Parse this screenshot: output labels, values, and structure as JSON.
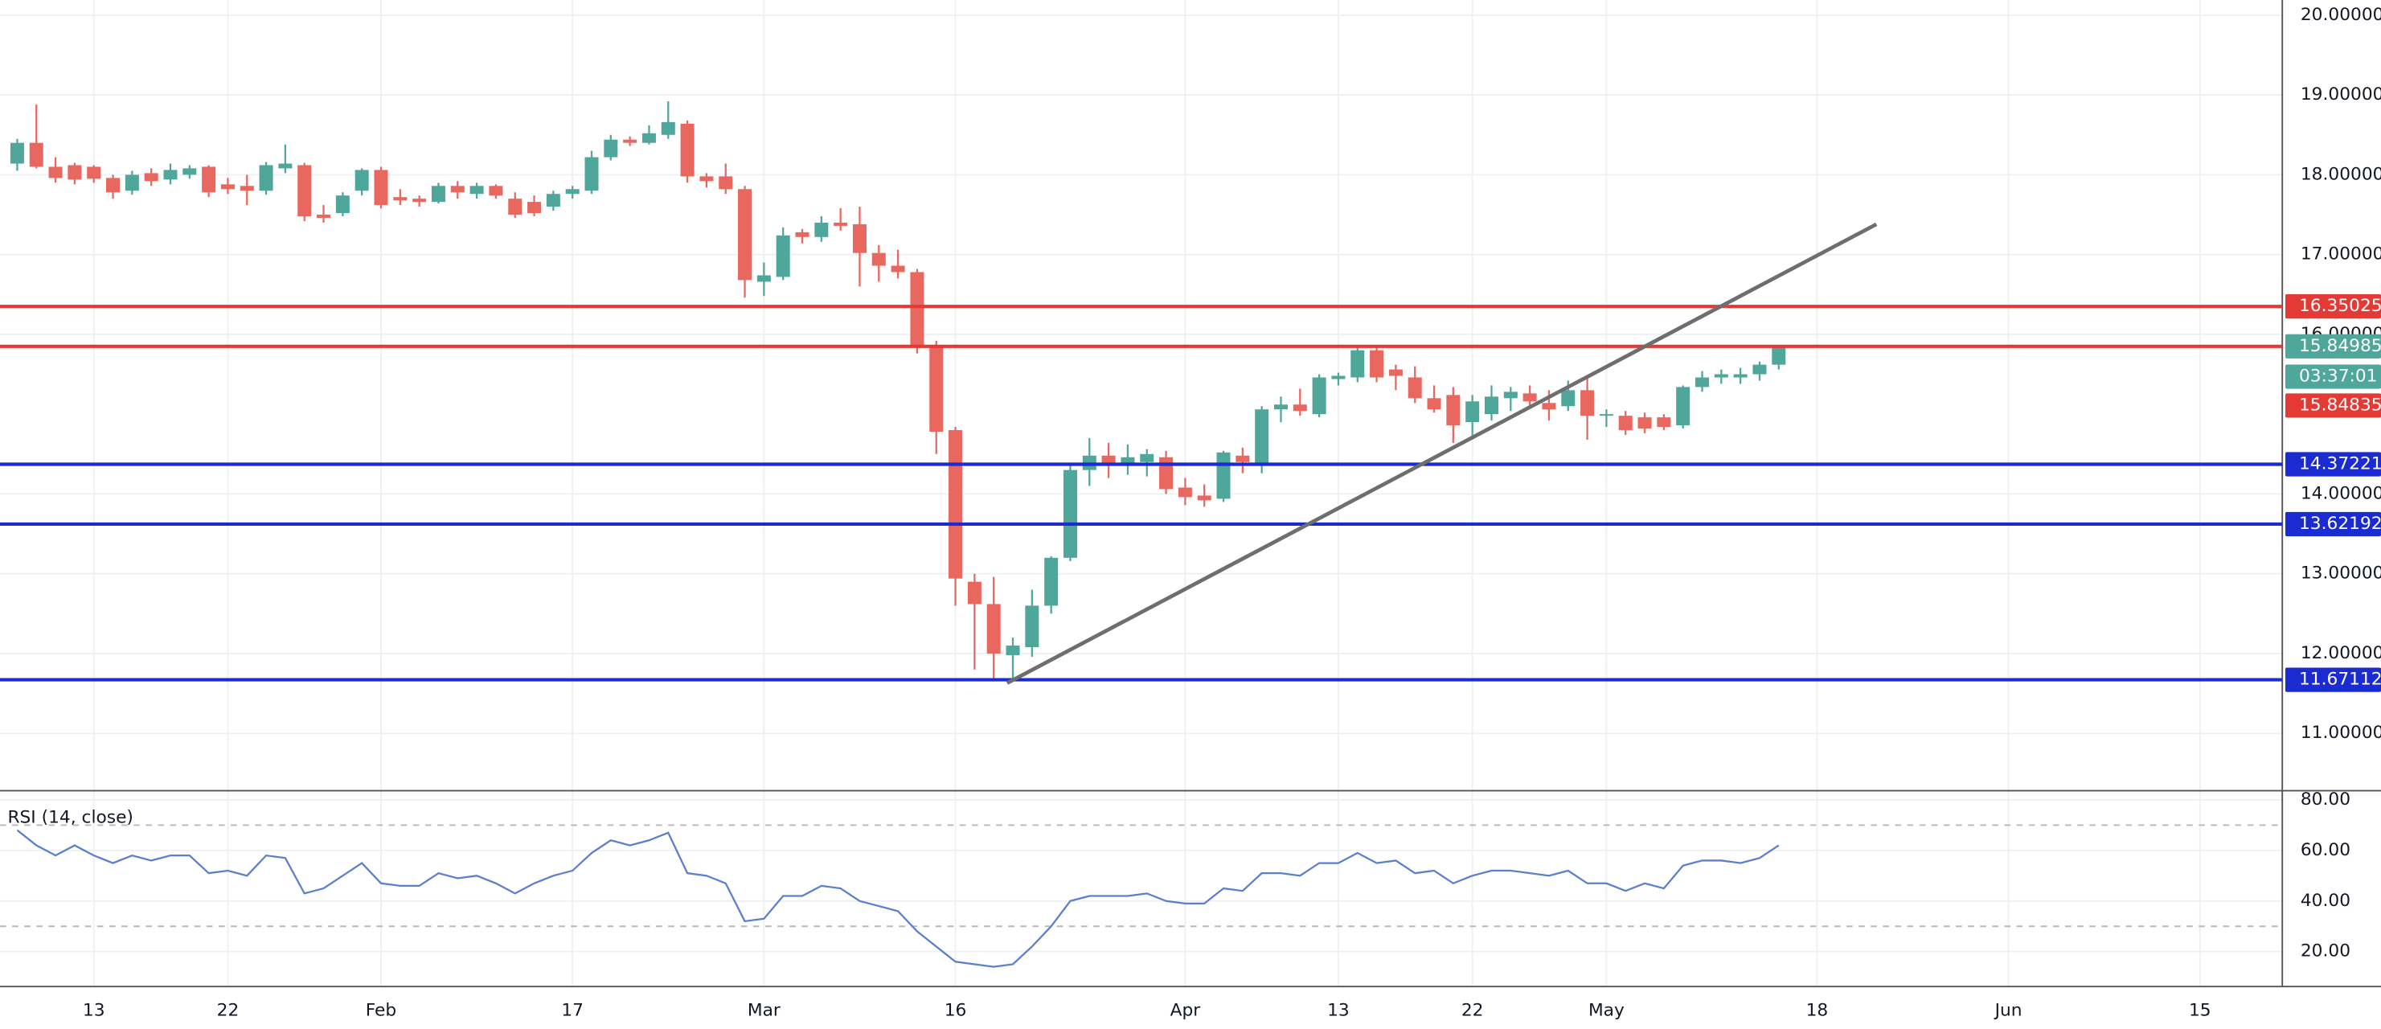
{
  "chart_data": {
    "type": "candlestick",
    "up_color": "#4fa69a",
    "down_color": "#e8675e",
    "xlim": [
      -0.9,
      118.3
    ],
    "xticks": [
      {
        "value": 4,
        "label": "13"
      },
      {
        "value": 11,
        "label": "22"
      },
      {
        "value": 19,
        "label": "Feb"
      },
      {
        "value": 29,
        "label": "17"
      },
      {
        "value": 39,
        "label": "Mar"
      },
      {
        "value": 49,
        "label": "16"
      },
      {
        "value": 61,
        "label": "Apr"
      },
      {
        "value": 69,
        "label": "13"
      },
      {
        "value": 76,
        "label": "22"
      },
      {
        "value": 83,
        "label": "May"
      },
      {
        "value": 94,
        "label": "18"
      },
      {
        "value": 104,
        "label": "Jun"
      },
      {
        "value": 114,
        "label": "15"
      }
    ],
    "ylim": [
      10.3,
      20.19
    ],
    "yticks": [
      {
        "value": 11,
        "label": "11.00000"
      },
      {
        "value": 12,
        "label": "12.00000"
      },
      {
        "value": 13,
        "label": "13.00000"
      },
      {
        "value": 14,
        "label": "14.00000"
      },
      {
        "value": 16,
        "label": "16.00000"
      },
      {
        "value": 17,
        "label": "17.00000"
      },
      {
        "value": 18,
        "label": "18.00000"
      },
      {
        "value": 19,
        "label": "19.00000"
      },
      {
        "value": 20,
        "label": "20.00000"
      }
    ],
    "grid": true,
    "open": [
      18.14,
      18.4,
      18.1,
      18.12,
      18.1,
      17.96,
      17.8,
      18.02,
      17.94,
      18.0,
      18.1,
      17.88,
      17.86,
      17.8,
      18.08,
      18.12,
      17.5,
      17.52,
      17.8,
      18.06,
      17.72,
      17.7,
      17.66,
      17.86,
      17.76,
      17.86,
      17.7,
      17.66,
      17.6,
      17.76,
      17.8,
      18.22,
      18.44,
      18.4,
      18.5,
      18.64,
      17.98,
      17.98,
      17.82,
      16.66,
      16.72,
      17.28,
      17.22,
      17.4,
      17.38,
      17.02,
      16.86,
      16.78,
      15.86,
      14.8,
      12.9,
      12.62,
      11.98,
      12.08,
      12.6,
      13.2,
      14.3,
      14.48,
      14.36,
      14.4,
      14.46,
      14.08,
      13.98,
      13.94,
      14.48,
      14.38,
      15.06,
      15.12,
      15.0,
      15.44,
      15.46,
      15.8,
      15.56,
      15.46,
      15.2,
      15.24,
      14.9,
      15.0,
      15.2,
      15.26,
      15.14,
      15.1,
      15.3,
      14.98,
      14.98,
      14.96,
      14.96,
      14.86,
      15.34,
      15.46,
      15.46,
      15.5,
      15.62
    ],
    "high": [
      18.45,
      18.88,
      18.22,
      18.15,
      18.12,
      18.0,
      18.05,
      18.08,
      18.14,
      18.12,
      18.12,
      17.96,
      18.0,
      18.16,
      18.38,
      18.15,
      17.62,
      17.78,
      18.08,
      18.1,
      17.82,
      17.74,
      17.9,
      17.92,
      17.9,
      17.88,
      17.78,
      17.74,
      17.8,
      17.86,
      18.3,
      18.5,
      18.48,
      18.62,
      18.92,
      18.68,
      18.02,
      18.14,
      17.86,
      16.9,
      17.34,
      17.32,
      17.48,
      17.58,
      17.6,
      17.12,
      17.06,
      16.82,
      15.92,
      14.84,
      13.0,
      12.96,
      12.2,
      12.8,
      13.22,
      14.36,
      14.7,
      14.64,
      14.62,
      14.56,
      14.54,
      14.2,
      14.12,
      14.54,
      14.58,
      15.1,
      15.22,
      15.32,
      15.5,
      15.52,
      15.86,
      15.86,
      15.62,
      15.6,
      15.36,
      15.34,
      15.24,
      15.36,
      15.34,
      15.36,
      15.3,
      15.42,
      15.46,
      15.06,
      15.04,
      15.02,
      15.0,
      15.36,
      15.54,
      15.56,
      15.58,
      15.66,
      15.86
    ],
    "low": [
      18.05,
      18.08,
      17.9,
      17.88,
      17.9,
      17.7,
      17.75,
      17.86,
      17.88,
      17.95,
      17.72,
      17.76,
      17.62,
      17.75,
      18.02,
      17.42,
      17.4,
      17.48,
      17.74,
      17.58,
      17.62,
      17.6,
      17.64,
      17.7,
      17.7,
      17.7,
      17.46,
      17.48,
      17.55,
      17.7,
      17.76,
      18.18,
      18.36,
      18.38,
      18.45,
      17.9,
      17.84,
      17.76,
      16.46,
      16.48,
      16.68,
      17.14,
      17.16,
      17.3,
      16.6,
      16.66,
      16.7,
      15.76,
      14.5,
      12.6,
      11.8,
      11.68,
      11.66,
      11.96,
      12.5,
      13.16,
      14.1,
      14.2,
      14.24,
      14.22,
      14.0,
      13.86,
      13.84,
      13.9,
      14.26,
      14.26,
      14.9,
      14.98,
      14.96,
      15.36,
      15.4,
      15.4,
      15.3,
      15.14,
      15.02,
      14.64,
      14.72,
      14.92,
      15.04,
      15.08,
      14.92,
      15.04,
      14.68,
      14.84,
      14.74,
      14.76,
      14.8,
      14.82,
      15.28,
      15.38,
      15.38,
      15.42,
      15.56
    ],
    "close": [
      18.4,
      18.1,
      17.96,
      17.94,
      17.95,
      17.78,
      18.0,
      17.92,
      18.06,
      18.08,
      17.78,
      17.82,
      17.8,
      18.12,
      18.14,
      17.48,
      17.46,
      17.74,
      18.06,
      17.62,
      17.68,
      17.66,
      17.86,
      17.78,
      17.86,
      17.74,
      17.5,
      17.52,
      17.76,
      17.82,
      18.22,
      18.44,
      18.4,
      18.52,
      18.66,
      17.98,
      17.92,
      17.82,
      16.68,
      16.74,
      17.24,
      17.22,
      17.4,
      17.36,
      17.02,
      16.86,
      16.78,
      15.86,
      14.78,
      12.94,
      12.62,
      12.0,
      12.1,
      12.6,
      13.2,
      14.3,
      14.48,
      14.36,
      14.46,
      14.5,
      14.06,
      13.96,
      13.92,
      14.52,
      14.4,
      15.06,
      15.12,
      15.04,
      15.46,
      15.48,
      15.8,
      15.46,
      15.48,
      15.2,
      15.06,
      14.86,
      15.16,
      15.22,
      15.28,
      15.16,
      15.06,
      15.3,
      14.98,
      15.0,
      14.8,
      14.82,
      14.84,
      15.34,
      15.46,
      15.5,
      15.5,
      15.62,
      15.85
    ],
    "levels": [
      {
        "value": 16.35025,
        "color": "#e53935",
        "tag_color": "#e53935"
      },
      {
        "value": 15.84985,
        "color": "#e53935",
        "tag_color": "#4fa69a"
      },
      {
        "value": 14.37221,
        "color": "#1a2bd1",
        "tag_color": "#1a2bd1"
      },
      {
        "value": 13.62192,
        "color": "#1a2bd1",
        "tag_color": "#1a2bd1"
      },
      {
        "value": 11.67112,
        "color": "#1a2bd1",
        "tag_color": "#1a2bd1"
      }
    ],
    "countdown": "03:37:01",
    "countdown_color": "#4fa69a",
    "price_tags": [
      {
        "value": 15.84835,
        "color": "#e53935"
      }
    ],
    "trendline": {
      "x": [
        51.7,
        97.1
      ],
      "y": [
        11.63,
        17.38
      ],
      "color": "#6e6e6e"
    },
    "rsi": {
      "label": "RSI (14, close)",
      "color": "#5b7fcc",
      "ylim": [
        6.2,
        83.6
      ],
      "yticks": [
        {
          "value": 20,
          "label": "20.00"
        },
        {
          "value": 40,
          "label": "40.00"
        },
        {
          "value": 60,
          "label": "60.00"
        },
        {
          "value": 80,
          "label": "80.00"
        }
      ],
      "levels": [
        70,
        30
      ],
      "values": [
        68,
        62,
        58,
        62,
        58,
        55,
        58,
        56,
        58,
        58,
        51,
        52,
        50,
        58,
        57,
        43,
        45,
        50,
        55,
        47,
        46,
        46,
        51,
        49,
        50,
        47,
        43,
        47,
        50,
        52,
        59,
        64,
        62,
        64,
        67,
        51,
        50,
        47,
        32,
        33,
        42,
        42,
        46,
        45,
        40,
        38,
        36,
        28,
        22,
        16,
        15,
        14,
        15,
        22,
        30,
        40,
        42,
        42,
        42,
        43,
        40,
        39,
        39,
        45,
        44,
        51,
        51,
        50,
        55,
        55,
        59,
        55,
        56,
        51,
        52,
        47,
        50,
        52,
        52,
        51,
        50,
        52,
        47,
        47,
        44,
        47,
        45,
        54,
        56,
        56,
        55,
        57,
        62
      ]
    }
  }
}
